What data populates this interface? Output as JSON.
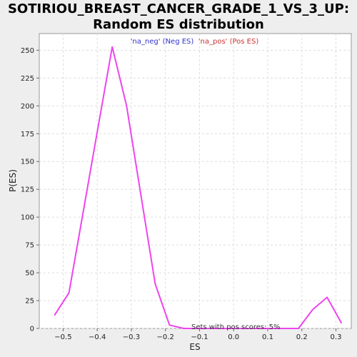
{
  "chart_data": {
    "type": "line",
    "title_line1": "SOTIRIOU_BREAST_CANCER_GRADE_1_VS_3_UP:",
    "title_line2": "Random ES distribution",
    "xlabel": "ES",
    "ylabel": "P(ES)",
    "xlim": [
      -0.57,
      0.345
    ],
    "ylim": [
      0,
      265
    ],
    "x_ticks": [
      -0.5,
      -0.4,
      -0.3,
      -0.2,
      -0.1,
      0.0,
      0.1,
      0.2,
      0.3
    ],
    "x_tick_labels": [
      "−0.5",
      "−0.4",
      "−0.3",
      "−0.2",
      "−0.1",
      "0.0",
      "0.1",
      "0.2",
      "0.3"
    ],
    "y_ticks": [
      0,
      25,
      50,
      75,
      100,
      125,
      150,
      175,
      200,
      225,
      250
    ],
    "y_tick_labels": [
      "0",
      "25",
      "50",
      "75",
      "100",
      "125",
      "150",
      "175",
      "200",
      "225",
      "250"
    ],
    "grid": true,
    "series": [
      {
        "color": "#ee44ee",
        "x": [
          -0.525,
          -0.483,
          -0.441,
          -0.398,
          -0.356,
          -0.314,
          -0.272,
          -0.23,
          -0.188,
          -0.146,
          -0.104,
          -0.062,
          -0.02,
          0.022,
          0.064,
          0.106,
          0.148,
          0.19,
          0.232,
          0.274,
          0.316
        ],
        "y": [
          12,
          32,
          105,
          180,
          253,
          200,
          120,
          40,
          3,
          0,
          0,
          0,
          0,
          0,
          0,
          0,
          0,
          0,
          17,
          28,
          5
        ]
      }
    ],
    "legend": {
      "neg_label": "'na_neg' (Neg ES)",
      "pos_label": "'na_pos' (Pos ES)",
      "neg_color": "#3333cc",
      "pos_color": "#cc3333",
      "placement": "top-center"
    },
    "annotation": "Sets with pos scores: 5%"
  }
}
